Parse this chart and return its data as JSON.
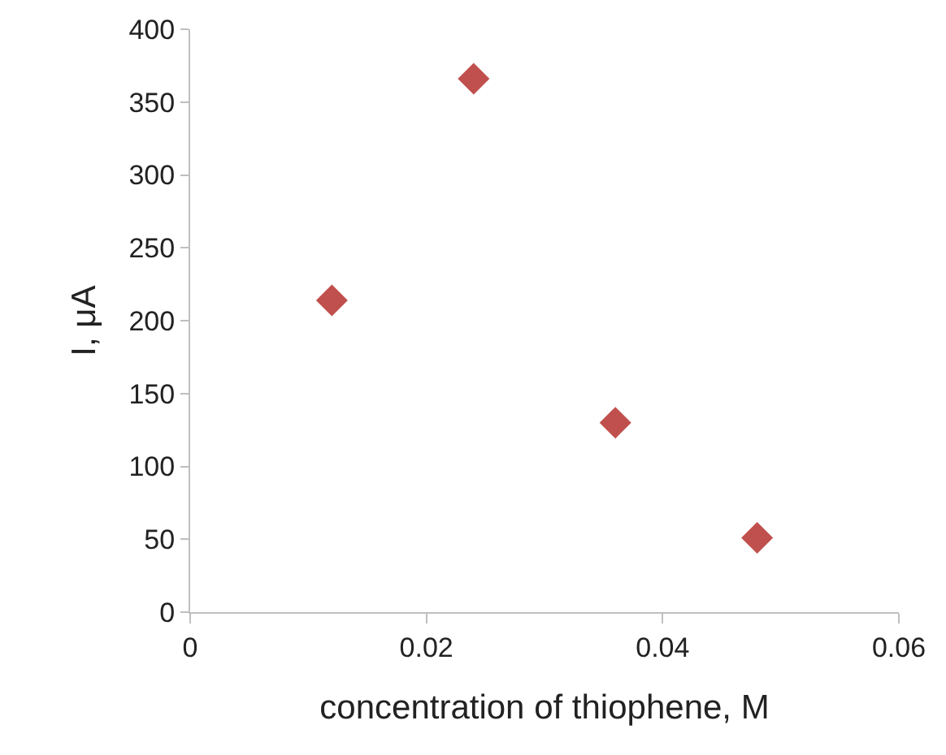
{
  "chart_data": {
    "type": "scatter",
    "xlabel": "concentration of thiophene, M",
    "ylabel": "I, μA",
    "x": [
      0.012,
      0.024,
      0.036,
      0.048
    ],
    "series": [
      {
        "color": "#c0504d",
        "values": [
          214,
          366,
          130,
          51
        ]
      }
    ],
    "xlim": [
      0,
      0.06
    ],
    "xticks": [
      0,
      0.02,
      0.04,
      0.06
    ],
    "ylim": [
      0,
      400
    ],
    "yticks": [
      0,
      50,
      100,
      150,
      200,
      250,
      300,
      350,
      400
    ],
    "marker": "diamond"
  }
}
